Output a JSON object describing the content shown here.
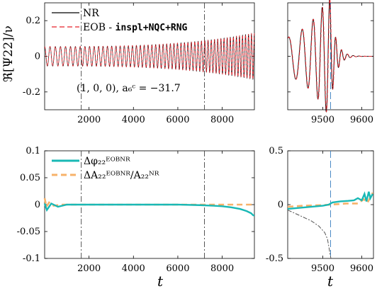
{
  "ylabel_top": "ℜ[Ψ22]/ν",
  "xlabel": "t",
  "colors": {
    "nr": "#000000",
    "eob": "#e8222b",
    "dphi": "#19b8b5",
    "dA": "#f7b26a",
    "marker": "#3a7fc0",
    "grey": "#555555"
  },
  "chart_data": [
    {
      "id": "top-left",
      "type": "line",
      "xlim": [
        0,
        9450
      ],
      "ylim": [
        -0.3,
        0.3
      ],
      "xticks": [
        2000,
        4000,
        6000,
        8000
      ],
      "yticks": [
        -0.2,
        0,
        0.2
      ],
      "ytick_labels": [
        "-0.2",
        "0",
        "0.2"
      ],
      "vlines": [
        1650,
        7200
      ],
      "annotation": "(1, 0, 0), a₆ᶜ = −31.7",
      "legend": {
        "position": "top-left",
        "entries": [
          {
            "label": "NR",
            "style": "solid"
          },
          {
            "label_prefix": "EOB - ",
            "label_mono": "inspl+NQC+RNG",
            "style": "dashed"
          }
        ]
      },
      "series": [
        {
          "name": "NR",
          "amplitude_start": 0.055,
          "amplitude_end": 0.13,
          "cycles": 55
        },
        {
          "name": "EOB - inspl+NQC+RNG",
          "amplitude_start": 0.055,
          "amplitude_end": 0.13,
          "cycles": 55
        }
      ]
    },
    {
      "id": "top-right",
      "type": "line",
      "xlim": [
        9410,
        9630
      ],
      "ylim": [
        -0.3,
        0.3
      ],
      "xticks": [
        9500,
        9600
      ],
      "yticks": [
        -0.2,
        0,
        0.2
      ],
      "ytick_labels": [
        "",
        "",
        ""
      ],
      "vlines": [
        9520
      ],
      "peak_time": 9518,
      "peak_amplitude": 0.31
    },
    {
      "id": "bottom-left",
      "type": "line",
      "xlim": [
        0,
        9450
      ],
      "ylim": [
        -0.1,
        0.1
      ],
      "xticks": [
        2000,
        4000,
        6000,
        8000
      ],
      "yticks": [
        -0.1,
        -0.05,
        0,
        0.05,
        0.1
      ],
      "ytick_labels": [
        "-0.1",
        "-0.05",
        "0",
        "0.05",
        "0.1"
      ],
      "vlines": [
        1650,
        7200
      ],
      "legend": {
        "position": "top-left",
        "entries": [
          {
            "label": "Δφ₂₂ᴱᴼᴮᴺᴿ",
            "style": "solid"
          },
          {
            "label": "ΔA₂₂ᴱᴼᴮᴺᴿ/A₂₂ᴺᴿ",
            "style": "dashed"
          }
        ]
      },
      "series": [
        {
          "name": "Δφ₂₂ᴱᴼᴮᴺᴿ",
          "x": [
            0,
            100,
            300,
            600,
            1000,
            2000,
            4000,
            6000,
            7000,
            7600,
            8000,
            8400,
            8800,
            9100,
            9300,
            9400,
            9450
          ],
          "y": [
            0.002,
            -0.01,
            0.002,
            -0.004,
            0.0,
            0.0,
            0.0,
            0.0,
            -0.001,
            -0.002,
            -0.003,
            -0.005,
            -0.008,
            -0.012,
            -0.016,
            -0.02,
            -0.02
          ]
        },
        {
          "name": "ΔA₂₂ᴱᴼᴮᴺᴿ/A₂₂ᴺᴿ",
          "x": [
            0,
            80,
            200,
            400,
            800,
            2000,
            6000,
            9000,
            9450
          ],
          "y": [
            0.012,
            -0.004,
            0.004,
            -0.002,
            0.0,
            0.0,
            0.0,
            0.0,
            0.0
          ]
        }
      ]
    },
    {
      "id": "bottom-right",
      "type": "line",
      "xlim": [
        9410,
        9630
      ],
      "ylim": [
        -0.5,
        0.5
      ],
      "xticks": [
        9500,
        9600
      ],
      "yticks": [
        -0.5,
        0,
        0.5
      ],
      "ytick_labels": [
        "-0.5",
        "0",
        "0.5"
      ],
      "vlines": [
        9520
      ],
      "series": [
        {
          "name": "dphi",
          "x": [
            9410,
            9440,
            9470,
            9500,
            9515,
            9525,
            9545,
            9565,
            9580,
            9590,
            9600,
            9607,
            9612,
            9618,
            9622,
            9628
          ],
          "y": [
            -0.04,
            -0.03,
            -0.02,
            -0.01,
            0.0,
            0.02,
            0.03,
            0.035,
            0.04,
            0.06,
            0.04,
            0.1,
            0.03,
            0.12,
            0.06,
            0.1
          ]
        },
        {
          "name": "dA",
          "x": [
            9410,
            9450,
            9500,
            9520,
            9560,
            9590,
            9605,
            9615,
            9628
          ],
          "y": [
            -0.02,
            -0.01,
            -0.005,
            0.0,
            0.01,
            0.01,
            0.05,
            0.02,
            0.11
          ]
        },
        {
          "name": "grey",
          "x": [
            9410,
            9440,
            9470,
            9490,
            9505,
            9512,
            9516,
            9519,
            9521
          ],
          "y": [
            -0.05,
            -0.1,
            -0.15,
            -0.2,
            -0.26,
            -0.32,
            -0.4,
            -0.47,
            -0.5
          ]
        }
      ]
    }
  ]
}
